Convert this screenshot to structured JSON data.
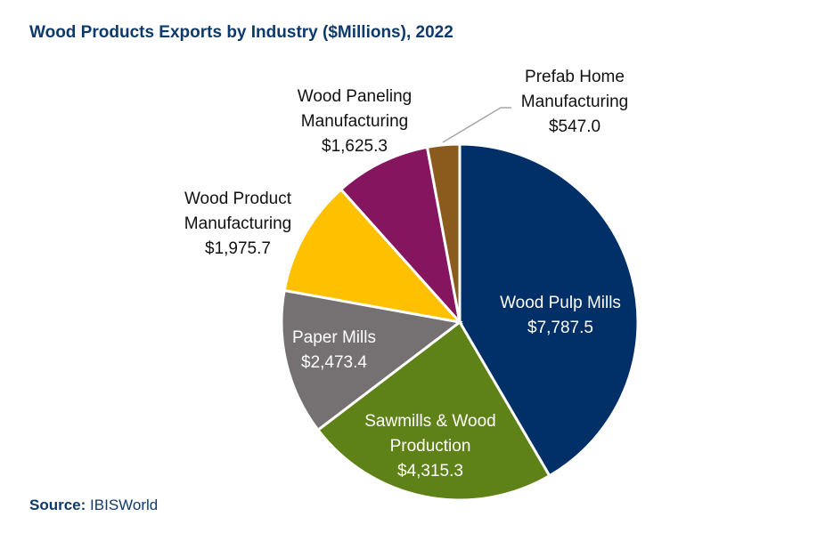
{
  "chart_data": {
    "type": "pie",
    "title": "Wood Products Exports by Industry ($Millions), 2022",
    "start": "12 o'clock, clockwise",
    "slices": [
      {
        "label_lines": [
          "Wood Pulp Mills"
        ],
        "value": 7787.5,
        "value_label": "$7,787.5",
        "color": "#003067",
        "text_color": "#ffffff"
      },
      {
        "label_lines": [
          "Sawmills & Wood",
          "Production"
        ],
        "value": 4315.3,
        "value_label": "$4,315.3",
        "color": "#5f8218",
        "text_color": "#ffffff"
      },
      {
        "label_lines": [
          "Paper Mills"
        ],
        "value": 2473.4,
        "value_label": "$2,473.4",
        "color": "#757071",
        "text_color": "#ffffff"
      },
      {
        "label_lines": [
          "Wood Product",
          "Manufacturing"
        ],
        "value": 1975.7,
        "value_label": "$1,975.7",
        "color": "#ffc000",
        "text_color": "#111111"
      },
      {
        "label_lines": [
          "Wood Paneling",
          "Manufacturing"
        ],
        "value": 1625.3,
        "value_label": "$1,625.3",
        "color": "#86155f",
        "text_color": "#111111"
      },
      {
        "label_lines": [
          "Prefab Home",
          "Manufacturing"
        ],
        "value": 547.0,
        "value_label": "$547.0",
        "color": "#8b5a1d",
        "text_color": "#111111"
      }
    ]
  },
  "source": {
    "label": "Source:",
    "value": "IBISWorld"
  }
}
